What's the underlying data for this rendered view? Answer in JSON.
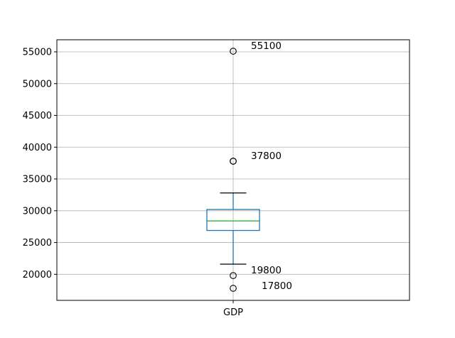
{
  "chart_data": {
    "type": "box",
    "title": "",
    "xlabel": "",
    "ylabel": "",
    "categories": [
      "GDP"
    ],
    "ylim": [
      15900,
      56900
    ],
    "yticks": [
      20000,
      25000,
      30000,
      35000,
      40000,
      45000,
      50000,
      55000
    ],
    "grid": true,
    "box": {
      "q1": 26900,
      "median": 28400,
      "q3": 30200,
      "whisker_low": 21600,
      "whisker_high": 32800
    },
    "outliers": [
      55100,
      37800,
      37800,
      19800,
      17800
    ],
    "annotations": [
      {
        "text": "55100",
        "y": 55100
      },
      {
        "text": "37800",
        "y": 37800
      },
      {
        "text": "19800",
        "y": 19800
      },
      {
        "text": "17800",
        "y": 17800
      }
    ],
    "colors": {
      "box": "#1f77b4",
      "median": "#2ca02c",
      "whisker_cap": "#000000",
      "grid": "#b0b0b0",
      "outlier": "#000000"
    }
  }
}
